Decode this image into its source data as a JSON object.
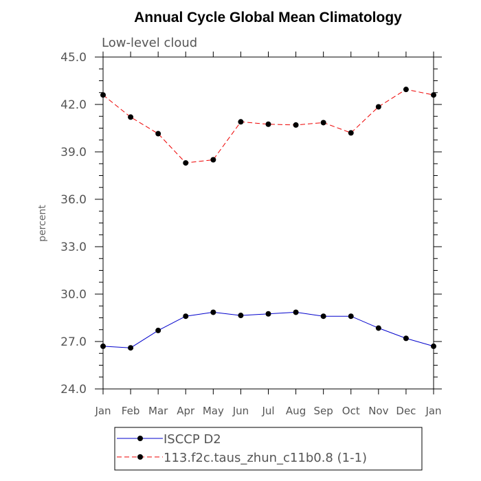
{
  "chart_data": {
    "type": "line",
    "title": "Annual Cycle Global Mean Climatology",
    "subtitle": "Low-level cloud",
    "xlabel": "",
    "ylabel": "percent",
    "categories": [
      "Jan",
      "Feb",
      "Mar",
      "Apr",
      "May",
      "Jun",
      "Jul",
      "Aug",
      "Sep",
      "Oct",
      "Nov",
      "Dec",
      "Jan"
    ],
    "ylim": [
      24.0,
      45.0
    ],
    "yticks": [
      "24.0",
      "27.0",
      "30.0",
      "33.0",
      "36.0",
      "39.0",
      "42.0",
      "45.0"
    ],
    "series": [
      {
        "name": "ISCCP D2",
        "color": "#0000cc",
        "dash": "solid",
        "values": [
          26.7,
          26.6,
          27.7,
          28.6,
          28.85,
          28.65,
          28.75,
          28.85,
          28.6,
          28.6,
          27.85,
          27.2,
          26.7
        ]
      },
      {
        "name": "113.f2c.taus_zhun_c11b0.8 (1-1)",
        "color": "#ee0000",
        "dash": "dashed",
        "values": [
          42.6,
          41.2,
          40.15,
          38.3,
          38.5,
          40.9,
          40.75,
          40.7,
          40.85,
          40.2,
          41.85,
          42.95,
          42.6
        ]
      }
    ]
  }
}
